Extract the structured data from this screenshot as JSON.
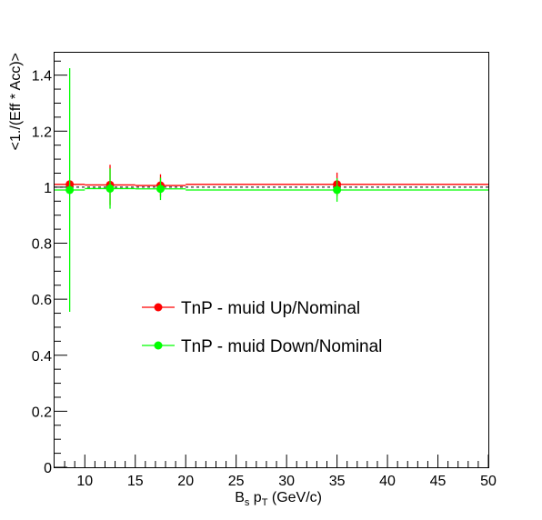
{
  "chart_data": {
    "type": "scatter",
    "title": "",
    "xlabel": {
      "base": "B",
      "sub1": "s",
      "mid": " p",
      "sub2": "T",
      "tail": " (GeV/c)"
    },
    "ylabel": "<1./(Eff * Acc)>",
    "xlim": [
      7,
      50
    ],
    "ylim": [
      0,
      1.48
    ],
    "x_ticks": [
      10,
      15,
      20,
      25,
      30,
      35,
      40,
      45,
      50
    ],
    "y_ticks": [
      0,
      0.2,
      0.4,
      0.6,
      0.8,
      1,
      1.2,
      1.4
    ],
    "x_tick_labels": [
      "10",
      "15",
      "20",
      "25",
      "30",
      "35",
      "40",
      "45",
      "50"
    ],
    "y_tick_labels": [
      "0",
      "0.2",
      "0.4",
      "0.6",
      "0.8",
      "1",
      "1.2",
      "1.4"
    ],
    "reference_line": 1.0,
    "legend_position": "center-left",
    "series": [
      {
        "name": "TnP - muid Up/Nominal",
        "color": "#ff0000",
        "x": [
          8.5,
          12.5,
          17.5,
          35
        ],
        "x_err": [
          1.5,
          2.5,
          2.5,
          15
        ],
        "y": [
          1.01,
          1.008,
          1.006,
          1.01
        ],
        "y_err": [
          0.0,
          0.072,
          0.04,
          0.042
        ]
      },
      {
        "name": "TnP - muid Down/Nominal",
        "color": "#00ff00",
        "x": [
          8.5,
          12.5,
          17.5,
          35
        ],
        "x_err": [
          1.5,
          2.5,
          2.5,
          15
        ],
        "y": [
          0.99,
          0.995,
          0.994,
          0.99
        ],
        "y_err": [
          0.435,
          0.072,
          0.04,
          0.042
        ]
      }
    ]
  }
}
